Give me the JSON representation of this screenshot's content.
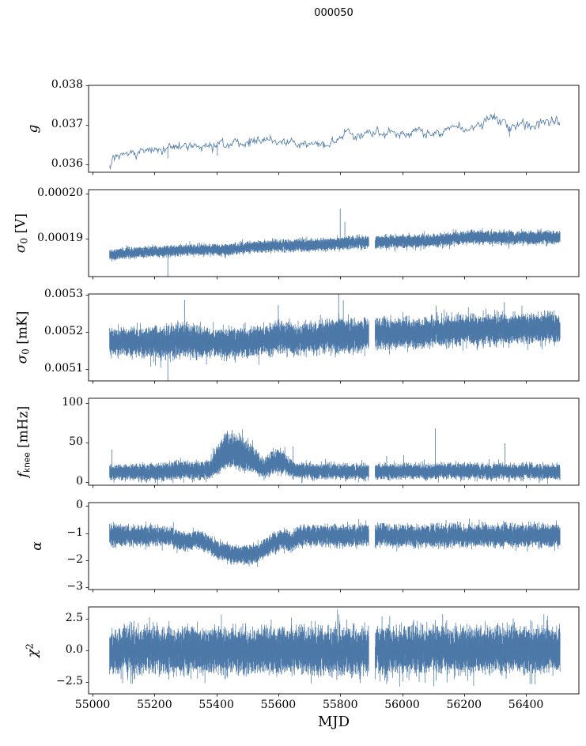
{
  "chart_data": {
    "type": "line",
    "title": "000050",
    "xlabel": "MJD",
    "line_color": "#4c78a8",
    "axis_color": "#000000",
    "background": "#ffffff",
    "grid": false,
    "legend": null,
    "xlim": [
      54987,
      56571
    ],
    "x_range": [
      55055,
      56510
    ],
    "xticks": {
      "values": [
        55000,
        55200,
        55400,
        55600,
        55800,
        56000,
        56200,
        56400
      ],
      "labels": [
        "55000",
        "55200",
        "55400",
        "55600",
        "55800",
        "56000",
        "56200",
        "56400"
      ]
    },
    "panels": [
      {
        "name": "g",
        "style": "line",
        "label_parts": [
          [
            "i",
            "g"
          ]
        ],
        "ylim": [
          0.0358,
          0.038
        ],
        "yticks": {
          "values": [
            0.036,
            0.037,
            0.038
          ],
          "labels": [
            "0.036",
            "0.037",
            "0.038"
          ]
        },
        "trend": [
          [
            55055,
            0.036
          ],
          [
            55075,
            0.03618
          ],
          [
            55110,
            0.03625
          ],
          [
            55150,
            0.0363
          ],
          [
            55200,
            0.03638
          ],
          [
            55240,
            0.03643
          ],
          [
            55300,
            0.03645
          ],
          [
            55340,
            0.03648
          ],
          [
            55360,
            0.03645
          ],
          [
            55400,
            0.0365
          ],
          [
            55450,
            0.03652
          ],
          [
            55470,
            0.03655
          ],
          [
            55500,
            0.0366
          ],
          [
            55530,
            0.03662
          ],
          [
            55555,
            0.03666
          ],
          [
            55580,
            0.0366
          ],
          [
            55610,
            0.03656
          ],
          [
            55640,
            0.03658
          ],
          [
            55670,
            0.03655
          ],
          [
            55700,
            0.03656
          ],
          [
            55730,
            0.03654
          ],
          [
            55760,
            0.03656
          ],
          [
            55790,
            0.0366
          ],
          [
            55810,
            0.0367
          ],
          [
            55830,
            0.03678
          ],
          [
            55850,
            0.03672
          ],
          [
            55870,
            0.03677
          ],
          [
            55890,
            0.03682
          ],
          [
            55910,
            0.0368
          ],
          [
            55930,
            0.03675
          ],
          [
            55950,
            0.03678
          ],
          [
            55970,
            0.03682
          ],
          [
            56000,
            0.0368
          ],
          [
            56030,
            0.03678
          ],
          [
            56060,
            0.0368
          ],
          [
            56090,
            0.03678
          ],
          [
            56110,
            0.03682
          ],
          [
            56140,
            0.0369
          ],
          [
            56170,
            0.03692
          ],
          [
            56200,
            0.03688
          ],
          [
            56230,
            0.03695
          ],
          [
            56260,
            0.03705
          ],
          [
            56290,
            0.03712
          ],
          [
            56310,
            0.03716
          ],
          [
            56330,
            0.03708
          ],
          [
            56347,
            0.0369
          ],
          [
            56360,
            0.03692
          ],
          [
            56380,
            0.037
          ],
          [
            56400,
            0.03706
          ],
          [
            56420,
            0.037
          ],
          [
            56440,
            0.03705
          ],
          [
            56460,
            0.03708
          ],
          [
            56480,
            0.03706
          ],
          [
            56500,
            0.03712
          ],
          [
            56510,
            0.03695
          ]
        ],
        "noise": 5e-05,
        "spikes": [
          [
            55243,
            0.03615
          ],
          [
            55403,
            0.03622
          ],
          [
            56347,
            0.0367
          ]
        ],
        "gaps": []
      },
      {
        "name": "sigma0_V",
        "style": "band",
        "label_parts": [
          [
            "i",
            "σ"
          ],
          [
            "sub",
            "0"
          ],
          [
            "n",
            " [V]"
          ]
        ],
        "ylim": [
          0.0001816,
          0.0002009
        ],
        "yticks": {
          "values": [
            0.00019,
            0.0002
          ],
          "labels": [
            "0.00019",
            "0.00020"
          ]
        },
        "trend": [
          [
            55055,
            0.0001863
          ],
          [
            55080,
            0.0001866
          ],
          [
            55120,
            0.0001869
          ],
          [
            55160,
            0.000187
          ],
          [
            55200,
            0.0001872
          ],
          [
            55250,
            0.0001873
          ],
          [
            55300,
            0.0001875
          ],
          [
            55350,
            0.0001876
          ],
          [
            55400,
            0.0001877
          ],
          [
            55430,
            0.0001875
          ],
          [
            55470,
            0.0001878
          ],
          [
            55500,
            0.0001881
          ],
          [
            55540,
            0.0001883
          ],
          [
            55580,
            0.0001884
          ],
          [
            55620,
            0.0001884
          ],
          [
            55660,
            0.0001885
          ],
          [
            55700,
            0.0001886
          ],
          [
            55740,
            0.0001887
          ],
          [
            55780,
            0.0001888
          ],
          [
            55820,
            0.0001891
          ],
          [
            55860,
            0.0001892
          ],
          [
            55900,
            0.0001893
          ],
          [
            55940,
            0.0001893
          ],
          [
            55980,
            0.0001894
          ],
          [
            56020,
            0.0001894
          ],
          [
            56060,
            0.0001895
          ],
          [
            56100,
            0.0001896
          ],
          [
            56140,
            0.0001899
          ],
          [
            56180,
            0.0001901
          ],
          [
            56220,
            0.0001903
          ],
          [
            56260,
            0.0001904
          ],
          [
            56300,
            0.0001903
          ],
          [
            56340,
            0.0001902
          ],
          [
            56380,
            0.0001903
          ],
          [
            56420,
            0.0001903
          ],
          [
            56460,
            0.0001904
          ],
          [
            56510,
            0.0001904
          ]
        ],
        "noise": [
          [
            55055,
            1e-06
          ],
          [
            55800,
            1.2e-06
          ],
          [
            56510,
            1.3e-06
          ]
        ],
        "spikes": [
          [
            55243,
            0.0001814
          ],
          [
            55429,
            0.0001856
          ],
          [
            55800,
            0.0001967
          ],
          [
            55815,
            0.0001938
          ],
          [
            56345,
            0.0001878
          ]
        ],
        "gaps": [
          [
            55893,
            55912
          ]
        ]
      },
      {
        "name": "sigma0_mK",
        "style": "band",
        "label_parts": [
          [
            "i",
            "σ"
          ],
          [
            "sub",
            "0"
          ],
          [
            "n",
            " [mK]"
          ]
        ],
        "ylim": [
          0.005068,
          0.005302
        ],
        "yticks": {
          "values": [
            0.0051,
            0.0052,
            0.0053
          ],
          "labels": [
            "0.0051",
            "0.0052",
            "0.0053"
          ]
        },
        "trend": [
          [
            55055,
            0.005175
          ],
          [
            55150,
            0.005173
          ],
          [
            55250,
            0.005172
          ],
          [
            55290,
            0.00518
          ],
          [
            55320,
            0.005176
          ],
          [
            55400,
            0.00517
          ],
          [
            55450,
            0.005172
          ],
          [
            55500,
            0.00517
          ],
          [
            55560,
            0.005178
          ],
          [
            55600,
            0.005184
          ],
          [
            55650,
            0.00518
          ],
          [
            55700,
            0.005183
          ],
          [
            55750,
            0.005188
          ],
          [
            55800,
            0.005192
          ],
          [
            55850,
            0.00519
          ],
          [
            55900,
            0.005196
          ],
          [
            55950,
            0.005194
          ],
          [
            56000,
            0.005198
          ],
          [
            56050,
            0.005196
          ],
          [
            56100,
            0.0052
          ],
          [
            56150,
            0.005202
          ],
          [
            56200,
            0.005205
          ],
          [
            56250,
            0.005204
          ],
          [
            56300,
            0.005207
          ],
          [
            56350,
            0.005208
          ],
          [
            56400,
            0.005209
          ],
          [
            56450,
            0.00521
          ],
          [
            56510,
            0.005211
          ]
        ],
        "noise": [
          [
            55055,
            3e-05
          ],
          [
            55290,
            4e-05
          ],
          [
            55400,
            3.2e-05
          ],
          [
            55800,
            4e-05
          ],
          [
            56000,
            3.4e-05
          ],
          [
            56510,
            3.4e-05
          ]
        ],
        "spikes": [
          [
            55243,
            0.005048
          ],
          [
            55297,
            0.005286
          ],
          [
            55600,
            0.005272
          ],
          [
            55795,
            0.00531
          ],
          [
            55810,
            0.005285
          ],
          [
            56110,
            0.00527
          ],
          [
            56330,
            0.00528
          ]
        ],
        "gaps": [
          [
            55893,
            55912
          ]
        ]
      },
      {
        "name": "f_knee_mHz",
        "style": "band",
        "label_parts": [
          [
            "i",
            "f"
          ],
          [
            "subsans",
            "knee"
          ],
          [
            "n",
            " [mHz]"
          ]
        ],
        "ylim": [
          -4,
          106
        ],
        "yticks": {
          "values": [
            0,
            50,
            100
          ],
          "labels": [
            "0",
            "50",
            "100"
          ]
        },
        "trend": [
          [
            55055,
            12
          ],
          [
            55150,
            12
          ],
          [
            55250,
            13
          ],
          [
            55290,
            16
          ],
          [
            55330,
            14
          ],
          [
            55370,
            14
          ],
          [
            55400,
            22
          ],
          [
            55420,
            30
          ],
          [
            55445,
            34
          ],
          [
            55470,
            32
          ],
          [
            55500,
            27
          ],
          [
            55530,
            22
          ],
          [
            55555,
            17
          ],
          [
            55580,
            22
          ],
          [
            55600,
            26
          ],
          [
            55620,
            22
          ],
          [
            55645,
            16
          ],
          [
            55680,
            14
          ],
          [
            55720,
            13
          ],
          [
            55800,
            13
          ],
          [
            55900,
            12
          ],
          [
            56000,
            13
          ],
          [
            56100,
            13
          ],
          [
            56200,
            14
          ],
          [
            56300,
            13
          ],
          [
            56400,
            13
          ],
          [
            56510,
            12
          ]
        ],
        "noise": [
          [
            55055,
            8
          ],
          [
            55390,
            11
          ],
          [
            55450,
            13
          ],
          [
            55520,
            11
          ],
          [
            55600,
            11
          ],
          [
            55650,
            8
          ],
          [
            56510,
            8
          ]
        ],
        "noise_up": [
          [
            55055,
            8
          ],
          [
            55300,
            10
          ],
          [
            55370,
            10
          ],
          [
            55400,
            18
          ],
          [
            55430,
            30
          ],
          [
            55460,
            28
          ],
          [
            55490,
            24
          ],
          [
            55520,
            18
          ],
          [
            55550,
            12
          ],
          [
            55580,
            14
          ],
          [
            55605,
            16
          ],
          [
            55630,
            11
          ],
          [
            55660,
            9
          ],
          [
            55720,
            9
          ],
          [
            56510,
            9
          ]
        ],
        "spikes": [
          [
            55062,
            41
          ],
          [
            55648,
            45
          ],
          [
            55870,
            28
          ],
          [
            55950,
            33
          ],
          [
            56005,
            34
          ],
          [
            56107,
            68
          ],
          [
            56332,
            49
          ]
        ],
        "gaps": [
          [
            55893,
            55912
          ]
        ]
      },
      {
        "name": "alpha",
        "style": "band",
        "label_parts": [
          [
            "i",
            "α"
          ]
        ],
        "ylim": [
          -3.08,
          0.12
        ],
        "yticks": {
          "values": [
            0,
            -1,
            -2,
            -3
          ],
          "labels": [
            "0",
            "−1",
            "−2",
            "−3"
          ]
        },
        "trend": [
          [
            55055,
            -1.08
          ],
          [
            55150,
            -1.1
          ],
          [
            55250,
            -1.12
          ],
          [
            55280,
            -1.25
          ],
          [
            55310,
            -1.32
          ],
          [
            55340,
            -1.25
          ],
          [
            55370,
            -1.35
          ],
          [
            55400,
            -1.6
          ],
          [
            55430,
            -1.72
          ],
          [
            55460,
            -1.78
          ],
          [
            55500,
            -1.8
          ],
          [
            55530,
            -1.78
          ],
          [
            55560,
            -1.55
          ],
          [
            55585,
            -1.35
          ],
          [
            55610,
            -1.22
          ],
          [
            55640,
            -1.3
          ],
          [
            55665,
            -1.15
          ],
          [
            55700,
            -1.1
          ],
          [
            55800,
            -1.1
          ],
          [
            55900,
            -1.08
          ],
          [
            56000,
            -1.1
          ],
          [
            56100,
            -1.08
          ],
          [
            56200,
            -1.1
          ],
          [
            56300,
            -1.08
          ],
          [
            56400,
            -1.1
          ],
          [
            56510,
            -1.1
          ]
        ],
        "noise": [
          [
            55055,
            0.33
          ],
          [
            55280,
            0.3
          ],
          [
            55400,
            0.28
          ],
          [
            55560,
            0.3
          ],
          [
            55650,
            0.33
          ],
          [
            56100,
            0.36
          ],
          [
            56510,
            0.36
          ]
        ],
        "spikes": [],
        "gaps": [
          [
            55893,
            55912
          ]
        ]
      },
      {
        "name": "chi2",
        "style": "band",
        "label_parts": [
          [
            "i",
            "χ"
          ],
          [
            "sup",
            "2"
          ]
        ],
        "ylim": [
          -3.4,
          3.4
        ],
        "yticks": {
          "values": [
            2.5,
            0.0,
            -2.5
          ],
          "labels": [
            "2.5",
            "0.0",
            "−2.5"
          ]
        },
        "trend": [
          [
            55055,
            0
          ],
          [
            56510,
            0
          ]
        ],
        "noise": [
          [
            55055,
            1.55
          ],
          [
            56510,
            1.6
          ]
        ],
        "spikes": [],
        "gaps": [
          [
            55893,
            55912
          ]
        ]
      }
    ]
  }
}
